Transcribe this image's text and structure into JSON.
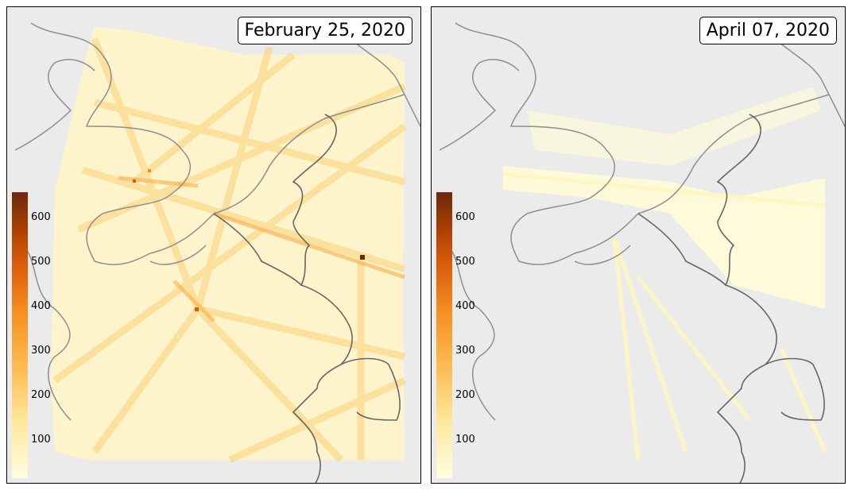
{
  "panels": [
    {
      "date_label": "February 25, 2020"
    },
    {
      "date_label": "April 07, 2020"
    }
  ],
  "colorbar": {
    "ticks": [
      "100",
      "200",
      "300",
      "400",
      "500",
      "600"
    ],
    "tick_values": [
      100,
      200,
      300,
      400,
      500,
      600
    ],
    "min": 40,
    "max": 650,
    "colors": [
      "#fffde0",
      "#fee79b",
      "#fdb94f",
      "#f78f22",
      "#d95b0b",
      "#a83e03",
      "#6b2a0c"
    ]
  }
}
